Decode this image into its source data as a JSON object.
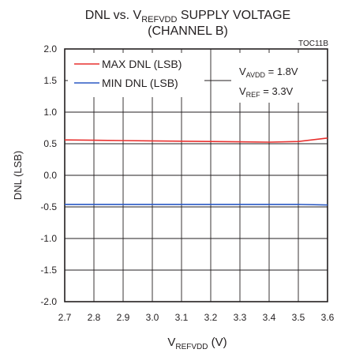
{
  "chart_data": {
    "type": "line",
    "title": {
      "line1_main": "DNL vs. V",
      "line1_sub": "REFVDD",
      "line1_rest": " SUPPLY VOLTAGE",
      "line2": "(CHANNEL B)"
    },
    "figure_id": "TOC11B",
    "xlabel": {
      "main": "V",
      "sub": "REFVDD",
      "rest": " (V)"
    },
    "ylabel": "DNL (LSB)",
    "xlim": [
      2.7,
      3.6
    ],
    "ylim": [
      -2.0,
      2.0
    ],
    "x_ticks": [
      "2.7",
      "2.8",
      "2.9",
      "3.0",
      "3.1",
      "3.2",
      "3.3",
      "3.4",
      "3.5",
      "3.6"
    ],
    "y_ticks": [
      "2.0",
      "1.5",
      "1.0",
      "0.5",
      "0.0",
      "-0.5",
      "-1.0",
      "-1.5",
      "-2.0"
    ],
    "grid": true,
    "series": [
      {
        "name": "MAX DNL (LSB)",
        "color": "#e8312f",
        "x": [
          2.7,
          2.8,
          2.9,
          3.0,
          3.1,
          3.2,
          3.3,
          3.4,
          3.5,
          3.6
        ],
        "y": [
          0.56,
          0.555,
          0.55,
          0.545,
          0.54,
          0.535,
          0.53,
          0.525,
          0.535,
          0.59
        ]
      },
      {
        "name": "MIN DNL (LSB)",
        "color": "#2b59c3",
        "x": [
          2.7,
          2.8,
          2.9,
          3.0,
          3.1,
          3.2,
          3.3,
          3.4,
          3.5,
          3.6
        ],
        "y": [
          -0.46,
          -0.46,
          -0.46,
          -0.46,
          -0.46,
          -0.46,
          -0.46,
          -0.46,
          -0.46,
          -0.47
        ]
      }
    ],
    "legend_position": "top-left",
    "annotations": [
      {
        "main": "V",
        "sub": "AVDD",
        "rest": " = 1.8V"
      },
      {
        "main": "V",
        "sub": "REF",
        "rest": " = 3.3V"
      }
    ]
  }
}
